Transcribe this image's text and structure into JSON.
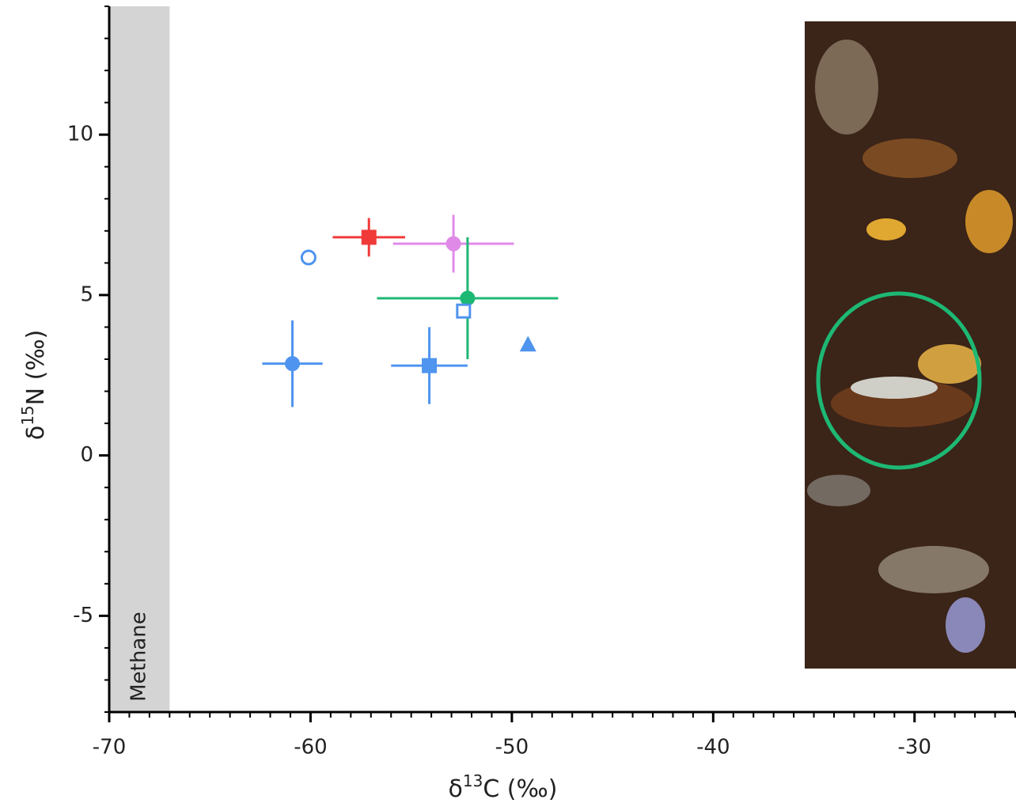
{
  "chart_data": {
    "type": "scatter",
    "xlim": [
      -70,
      -25
    ],
    "ylim": [
      -8,
      14
    ],
    "xticks": [
      -70,
      -60,
      -50,
      -40,
      -30
    ],
    "yticks": [
      -5,
      0,
      5,
      10
    ],
    "minor_tick_step": 1,
    "x_label": {
      "symbol": "δ",
      "superscript": "13",
      "text": "C (‰)"
    },
    "y_label": {
      "symbol": "δ",
      "superscript": "15",
      "text": "N (‰)"
    },
    "band": {
      "text": "Methane",
      "x_range": [
        -70,
        -67
      ],
      "color": "#d4d4d4"
    },
    "series": [
      {
        "color": "#4f94ef",
        "marker": "circle",
        "filled": true,
        "x": [
          -60.9
        ],
        "values": [
          2.86
        ],
        "xerr": [
          1.5
        ],
        "yerr": [
          1.35
        ]
      },
      {
        "color": "#4f94ef",
        "marker": "circle",
        "filled": false,
        "x": [
          -60.1
        ],
        "values": [
          6.17
        ]
      },
      {
        "color": "#f03a3a",
        "marker": "square",
        "filled": true,
        "x": [
          -57.1
        ],
        "values": [
          6.8
        ],
        "xerr": [
          1.8
        ],
        "yerr": [
          0.6
        ]
      },
      {
        "color": "#e08ae8",
        "marker": "circle",
        "filled": true,
        "x": [
          -52.9
        ],
        "values": [
          6.6
        ],
        "xerr": [
          3.0
        ],
        "yerr": [
          0.9
        ]
      },
      {
        "color": "#1db874",
        "marker": "circle",
        "filled": true,
        "x": [
          -52.2
        ],
        "values": [
          4.9
        ],
        "xerr": [
          4.5
        ],
        "yerr": [
          1.9
        ]
      },
      {
        "color": "#4f94ef",
        "marker": "square",
        "filled": false,
        "x": [
          -52.4
        ],
        "values": [
          4.5
        ]
      },
      {
        "color": "#4f94ef",
        "marker": "square",
        "filled": true,
        "x": [
          -54.1
        ],
        "values": [
          2.8
        ],
        "xerr": [
          1.9
        ],
        "yerr": [
          1.2
        ]
      },
      {
        "color": "#4f94ef",
        "marker": "triangle",
        "filled": true,
        "x": [
          -49.2
        ],
        "values": [
          3.45
        ]
      }
    ]
  }
}
